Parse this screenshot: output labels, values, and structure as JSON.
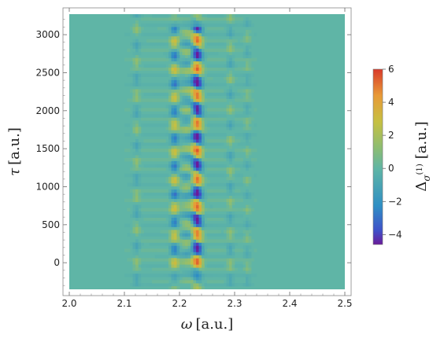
{
  "chart_data": {
    "type": "heatmap",
    "title": "",
    "xlabel_symbol": "ω",
    "xlabel_unit": "[a.u.]",
    "ylabel_symbol": "τ",
    "ylabel_unit": "[a.u.]",
    "colorbar_label_symbol": "Δ",
    "colorbar_label_sub": "σ",
    "colorbar_label_sup": "(1)",
    "colorbar_label_unit": "[a.u.]",
    "xlim": [
      2.0,
      2.5
    ],
    "ylim": [
      -350,
      3270
    ],
    "zlim": [
      -4.6,
      6.0
    ],
    "x_ticks": [
      "2.0",
      "2.1",
      "2.2",
      "2.3",
      "2.4",
      "2.5"
    ],
    "y_ticks": [
      "0",
      "500",
      "1000",
      "1500",
      "2000",
      "2500",
      "3000"
    ],
    "colorbar_ticks": [
      "6",
      "4",
      "2",
      "0",
      "−2",
      "−4"
    ],
    "colorscale": [
      "#6a1b9a",
      "#3f51c9",
      "#2f8fc4",
      "#5fb5a6",
      "#8cbd73",
      "#c6c042",
      "#e89a37",
      "#d83a2a"
    ],
    "features": [
      {
        "omega": 2.23,
        "description": "strong oscillating band",
        "min": -4.6,
        "max": 6.0
      },
      {
        "omega": 2.19,
        "description": "secondary band"
      },
      {
        "omega": 2.12,
        "description": "weak vertical stripe"
      },
      {
        "omega": 2.29,
        "description": "weak vertical stripe"
      },
      {
        "omega": 2.32,
        "description": "weak vertical stripe"
      }
    ],
    "grid": false,
    "legend": "colorbar-right"
  }
}
